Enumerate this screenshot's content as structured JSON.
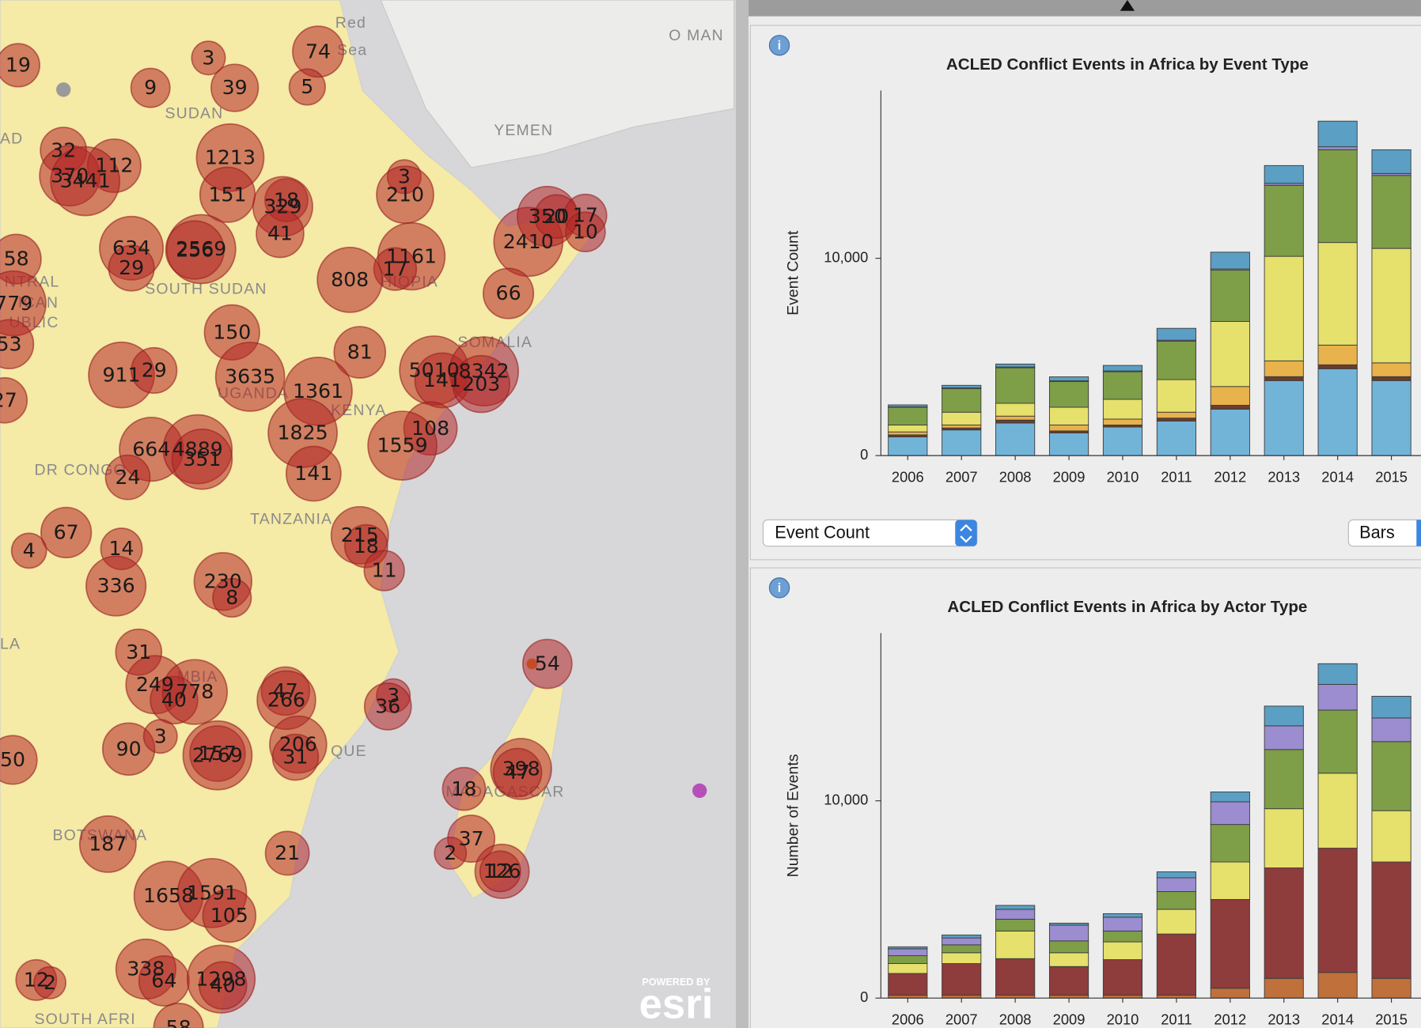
{
  "map": {
    "places": [
      "O MAN",
      "YEMEN",
      "SUDAN",
      "SOUTH SUDAN",
      "SOMALIA",
      "UGANDA",
      "KENYA",
      "DR CONGO",
      "TANZANIA",
      "MADAGASCAR",
      "BOTSWANA",
      "SOUTH AFRI",
      "Red",
      "Sea",
      "AD",
      "NTRAL",
      "ICAN",
      "UBLIC",
      "LA",
      "HIOPIA",
      "MBIA",
      "QUE"
    ],
    "bubbles": [
      19,
      3,
      74,
      9,
      39,
      5,
      32,
      370,
      112,
      3441,
      1213,
      151,
      18,
      329,
      3,
      210,
      41,
      58,
      634,
      29,
      2569,
      256,
      1161,
      17,
      2410,
      350,
      20,
      17,
      10,
      808,
      66,
      779,
      150,
      81,
      53,
      911,
      29,
      3635,
      5010,
      141,
      8342,
      203,
      1361,
      27,
      1825,
      108,
      664,
      4889,
      351,
      1559,
      24,
      141,
      67,
      4,
      14,
      215,
      18,
      11,
      336,
      230,
      8,
      31,
      54,
      249,
      40,
      778,
      47,
      266,
      3,
      36,
      90,
      3,
      50,
      157,
      2769,
      206,
      31,
      398,
      47,
      18,
      187,
      21,
      37,
      2,
      126,
      12,
      1658,
      1591,
      105,
      338,
      64,
      1298,
      40,
      12,
      2,
      58
    ],
    "attribution": [
      "POWERED BY",
      "esri"
    ]
  },
  "chart_data": [
    {
      "type": "bar",
      "stacked": true,
      "title": "ACLED Conflict Events in Africa by Event Type",
      "ylabel": "Event Count",
      "categories": [
        "2006",
        "2007",
        "2008",
        "2009",
        "2010",
        "2011",
        "2012",
        "2013",
        "2014",
        "2015"
      ],
      "ylim": [
        0,
        18500
      ],
      "yticks": [
        0,
        {
          "value": 10000,
          "label": "10,000"
        }
      ],
      "series": [
        {
          "color": "#72b4d8",
          "values": [
            950,
            1300,
            1650,
            1150,
            1450,
            1750,
            2350,
            3800,
            4400,
            3800
          ]
        },
        {
          "color": "#6b3d2e",
          "values": [
            100,
            100,
            150,
            100,
            100,
            150,
            200,
            200,
            200,
            200
          ]
        },
        {
          "color": "#e8b24c",
          "values": [
            150,
            150,
            200,
            300,
            300,
            300,
            950,
            800,
            1000,
            700
          ]
        },
        {
          "color": "#e6e06c",
          "values": [
            350,
            650,
            650,
            900,
            1000,
            1650,
            3300,
            5300,
            5200,
            5800
          ]
        },
        {
          "color": "#7e9e48",
          "values": [
            900,
            1200,
            1800,
            1300,
            1400,
            1950,
            2600,
            3600,
            4700,
            3700
          ]
        },
        {
          "color": "#9b8dd0",
          "values": [
            20,
            30,
            40,
            40,
            40,
            50,
            60,
            100,
            150,
            100
          ]
        },
        {
          "color": "#5b9fc4",
          "values": [
            100,
            130,
            150,
            200,
            280,
            600,
            850,
            900,
            1300,
            1200
          ]
        }
      ]
    },
    {
      "type": "bar",
      "stacked": true,
      "title": "ACLED Conflict Events in Africa by Actor Type",
      "ylabel": "Number of Events",
      "categories": [
        "2006",
        "2007",
        "2008",
        "2009",
        "2010",
        "2011",
        "2012",
        "2013",
        "2014",
        "2015"
      ],
      "ylim": [
        0,
        18500
      ],
      "yticks": [
        0,
        {
          "value": 10000,
          "label": "10,000"
        }
      ],
      "series": [
        {
          "color": "#c0703a",
          "values": [
            150,
            150,
            150,
            150,
            150,
            150,
            500,
            1000,
            1300,
            1000
          ]
        },
        {
          "color": "#8e3c3c",
          "values": [
            1100,
            1600,
            1850,
            1450,
            1800,
            3100,
            4500,
            5600,
            6300,
            5900
          ]
        },
        {
          "color": "#e6e06c",
          "values": [
            500,
            550,
            1400,
            700,
            900,
            1250,
            1900,
            3000,
            3800,
            2600
          ]
        },
        {
          "color": "#7e9e48",
          "values": [
            400,
            400,
            600,
            600,
            550,
            900,
            1900,
            3000,
            3200,
            3500
          ]
        },
        {
          "color": "#9b8dd0",
          "values": [
            350,
            350,
            500,
            800,
            700,
            700,
            1150,
            1200,
            1300,
            1200
          ]
        },
        {
          "color": "#5b9fc4",
          "values": [
            100,
            150,
            200,
            100,
            180,
            300,
            500,
            1000,
            1050,
            1100
          ]
        }
      ]
    }
  ],
  "controls": {
    "measure": "Event Count",
    "view": "Bars"
  }
}
